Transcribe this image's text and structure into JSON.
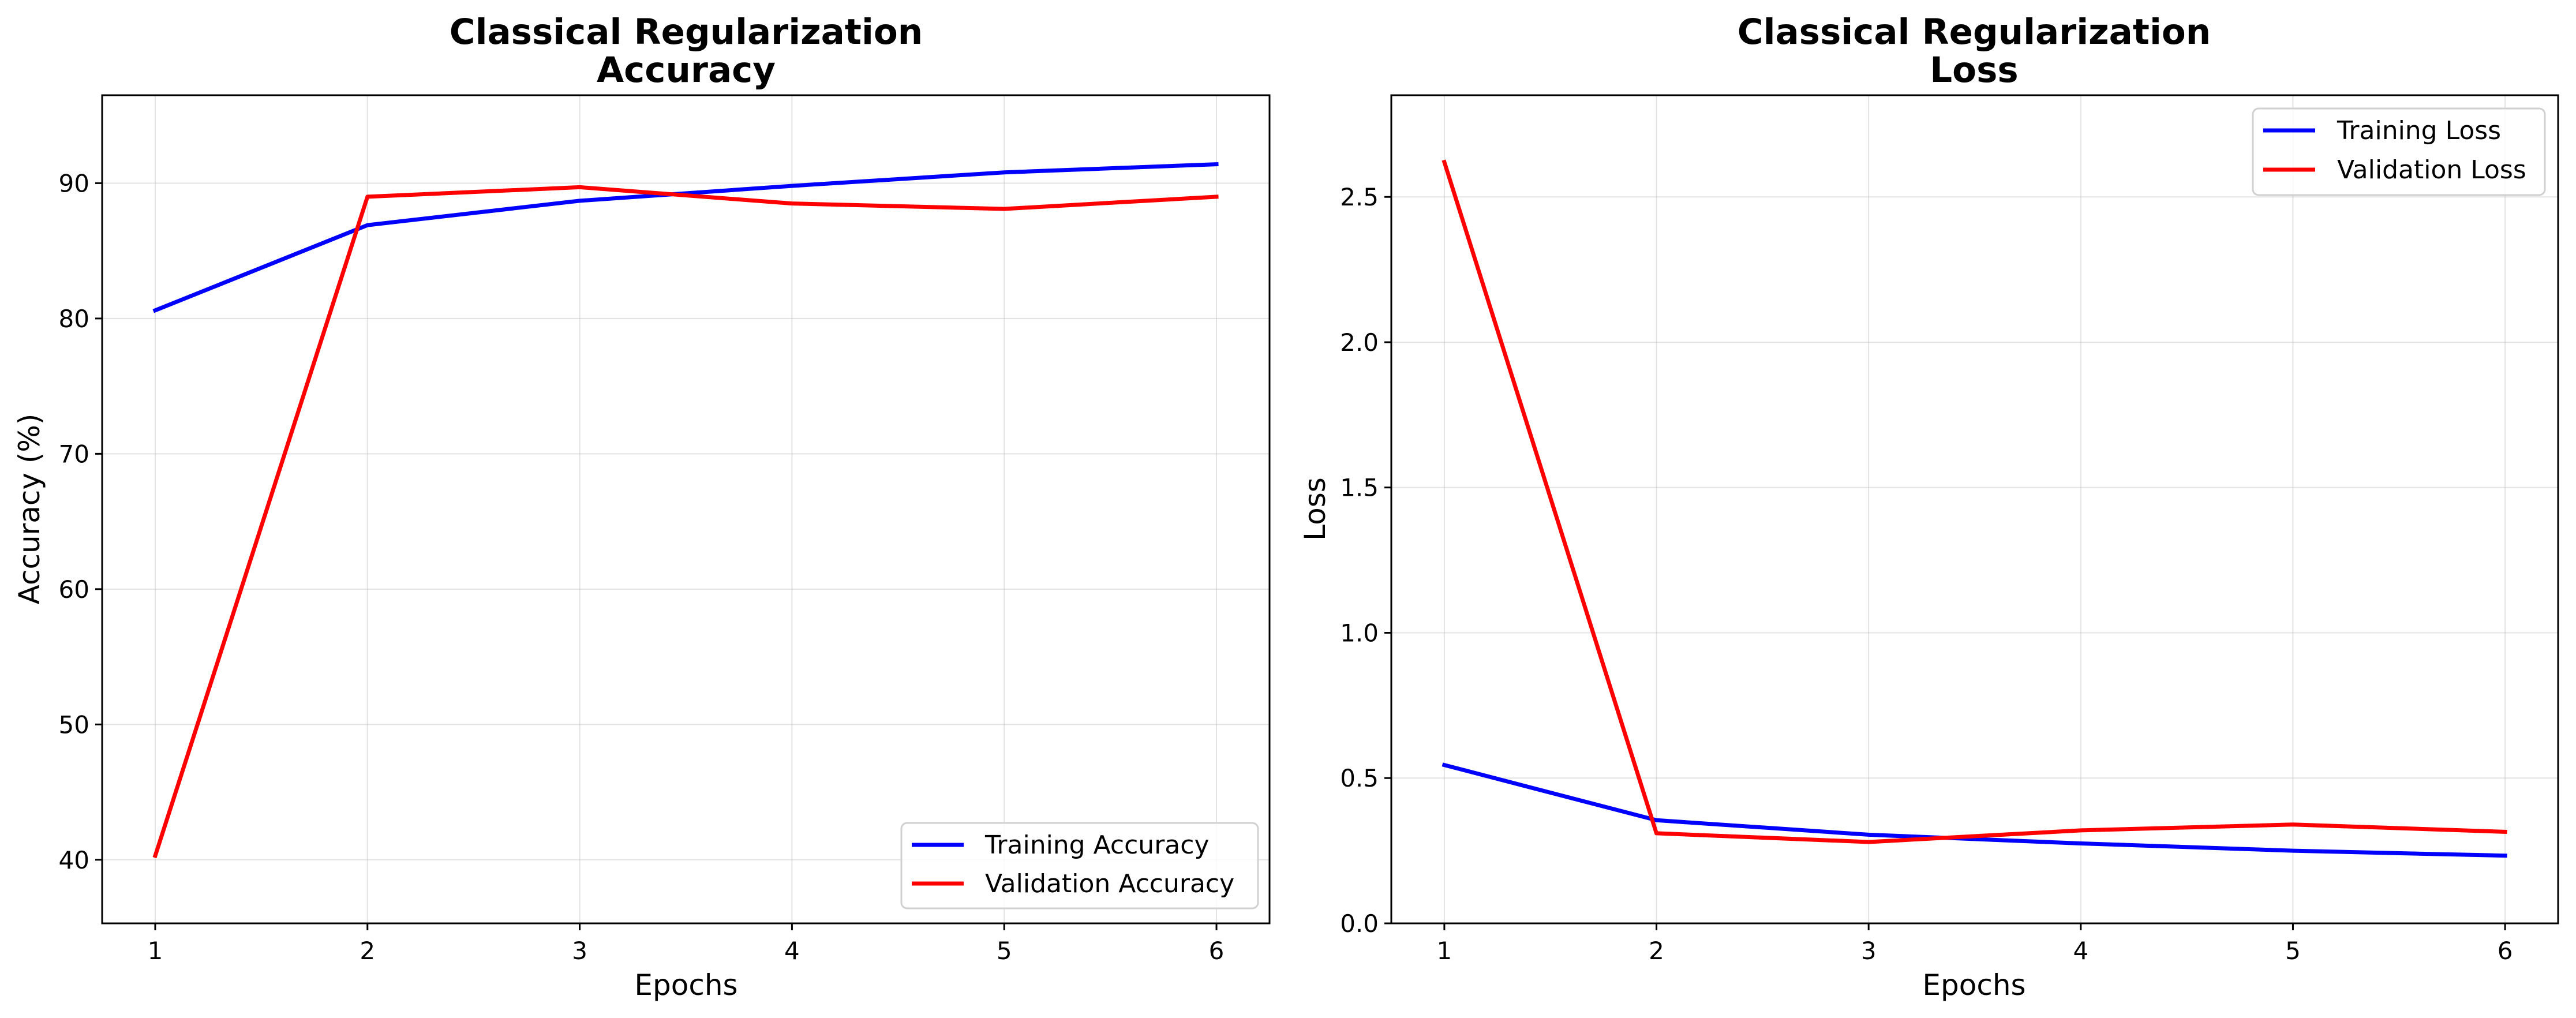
{
  "colors": {
    "training": "#0000ff",
    "validation": "#ff0000"
  },
  "chart_data": [
    {
      "type": "line",
      "title": [
        "Classical Regularization",
        "Accuracy"
      ],
      "xlabel": "Epochs",
      "ylabel": "Accuracy (%)",
      "x": [
        1,
        2,
        3,
        4,
        5,
        6
      ],
      "xticks": [
        "1",
        "2",
        "3",
        "4",
        "5",
        "6"
      ],
      "yticks": [
        "40",
        "50",
        "60",
        "70",
        "80",
        "90"
      ],
      "xlim": [
        0.75,
        6.25
      ],
      "ylim": [
        35.3,
        96.5
      ],
      "grid": true,
      "legend_position": "lower-right",
      "series": [
        {
          "name": "Training Accuracy",
          "color": "#0000ff",
          "values": [
            80.6,
            86.9,
            88.7,
            89.8,
            90.8,
            91.4
          ]
        },
        {
          "name": "Validation Accuracy",
          "color": "#ff0000",
          "values": [
            40.3,
            89.0,
            89.7,
            88.5,
            88.1,
            89.0
          ]
        }
      ]
    },
    {
      "type": "line",
      "title": [
        "Classical Regularization",
        "Loss"
      ],
      "xlabel": "Epochs",
      "ylabel": "Loss",
      "x": [
        1,
        2,
        3,
        4,
        5,
        6
      ],
      "xticks": [
        "1",
        "2",
        "3",
        "4",
        "5",
        "6"
      ],
      "yticks": [
        "0.0",
        "0.5",
        "1.0",
        "1.5",
        "2.0",
        "2.5"
      ],
      "xlim": [
        0.75,
        6.25
      ],
      "ylim": [
        0.0,
        2.85
      ],
      "grid": true,
      "legend_position": "upper-right",
      "series": [
        {
          "name": "Training Loss",
          "color": "#0000ff",
          "values": [
            0.545,
            0.355,
            0.305,
            0.275,
            0.25,
            0.233
          ]
        },
        {
          "name": "Validation Loss",
          "color": "#ff0000",
          "values": [
            2.62,
            0.31,
            0.28,
            0.32,
            0.34,
            0.315
          ]
        }
      ]
    }
  ]
}
